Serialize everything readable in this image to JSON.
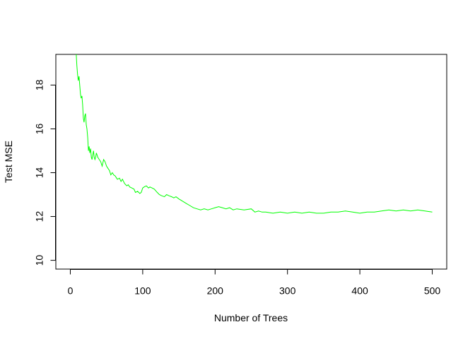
{
  "chart_data": {
    "type": "line",
    "title": "",
    "xlabel": "Number of Trees",
    "ylabel": "Test MSE",
    "xlim": [
      -20,
      520
    ],
    "ylim": [
      9.6,
      19.4
    ],
    "xticks": [
      0,
      100,
      200,
      300,
      400,
      500
    ],
    "xtick_labels": [
      "0",
      "100",
      "200",
      "300",
      "400",
      "500"
    ],
    "yticks": [
      10,
      12,
      14,
      16,
      18
    ],
    "ytick_labels": [
      "10",
      "12",
      "14",
      "16",
      "18"
    ],
    "grid": false,
    "series": [
      {
        "name": "Test MSE",
        "color": "#00ff00",
        "x": [
          8,
          9,
          10,
          11,
          12,
          13,
          14,
          15,
          16,
          17,
          18,
          19,
          20,
          21,
          22,
          23,
          24,
          25,
          26,
          27,
          28,
          29,
          30,
          31,
          32,
          33,
          34,
          35,
          36,
          37,
          38,
          40,
          42,
          44,
          46,
          48,
          50,
          52,
          54,
          56,
          58,
          60,
          62,
          65,
          68,
          70,
          72,
          75,
          78,
          80,
          82,
          85,
          88,
          90,
          93,
          96,
          98,
          100,
          102,
          105,
          108,
          110,
          113,
          116,
          120,
          123,
          126,
          130,
          133,
          136,
          140,
          143,
          146,
          150,
          155,
          160,
          165,
          170,
          175,
          180,
          185,
          190,
          195,
          200,
          205,
          210,
          215,
          220,
          225,
          230,
          240,
          250,
          255,
          260,
          265,
          270,
          280,
          290,
          300,
          310,
          320,
          330,
          340,
          350,
          360,
          370,
          380,
          390,
          400,
          410,
          420,
          430,
          440,
          450,
          460,
          470,
          480,
          490,
          500
        ],
        "y": [
          19.5,
          18.9,
          18.5,
          18.2,
          18.4,
          18.0,
          17.6,
          17.4,
          17.5,
          17.1,
          16.5,
          16.3,
          16.6,
          16.7,
          16.2,
          16.0,
          15.6,
          15.0,
          15.2,
          14.9,
          15.1,
          14.7,
          14.6,
          14.8,
          15.0,
          14.7,
          14.6,
          14.7,
          14.9,
          14.8,
          14.7,
          14.6,
          14.5,
          14.3,
          14.6,
          14.5,
          14.3,
          14.2,
          14.1,
          13.9,
          14.0,
          13.9,
          13.85,
          13.7,
          13.75,
          13.6,
          13.7,
          13.5,
          13.4,
          13.45,
          13.35,
          13.3,
          13.25,
          13.1,
          13.15,
          13.05,
          13.1,
          13.3,
          13.35,
          13.4,
          13.3,
          13.35,
          13.3,
          13.25,
          13.1,
          13.0,
          12.95,
          12.9,
          13.0,
          12.95,
          12.9,
          12.85,
          12.9,
          12.8,
          12.7,
          12.6,
          12.5,
          12.4,
          12.35,
          12.3,
          12.35,
          12.3,
          12.35,
          12.4,
          12.45,
          12.4,
          12.35,
          12.4,
          12.3,
          12.35,
          12.3,
          12.35,
          12.2,
          12.25,
          12.2,
          12.2,
          12.15,
          12.2,
          12.15,
          12.2,
          12.15,
          12.2,
          12.15,
          12.15,
          12.2,
          12.2,
          12.25,
          12.2,
          12.15,
          12.2,
          12.2,
          12.25,
          12.3,
          12.25,
          12.3,
          12.25,
          12.3,
          12.25,
          12.2
        ]
      }
    ]
  }
}
